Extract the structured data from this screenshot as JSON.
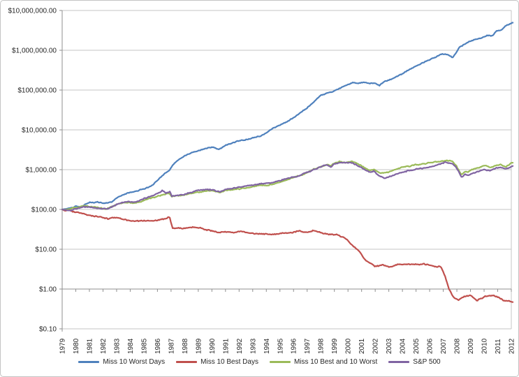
{
  "colors": {
    "background": "#ffffff",
    "chart_border": "#c3c3c3",
    "gridline": "#c6c6c6",
    "axis_line": "#8f8f8f",
    "label_text": "#262626"
  },
  "chart_data": {
    "type": "line",
    "title": "",
    "grid": true,
    "legend_position": "bottom",
    "x_axis": {
      "labels": [
        "1979",
        "1980",
        "1981",
        "1982",
        "1983",
        "1984",
        "1985",
        "1986",
        "1987",
        "1988",
        "1989",
        "1990",
        "1991",
        "1992",
        "1993",
        "1994",
        "1995",
        "1996",
        "1997",
        "1998",
        "1999",
        "2000",
        "2001",
        "2002",
        "2003",
        "2004",
        "2005",
        "2006",
        "2007",
        "2008",
        "2009",
        "2010",
        "2011",
        "2012"
      ],
      "range": [
        1979,
        2012
      ]
    },
    "y_axis": {
      "scale": "log",
      "min": 0.1,
      "max": 10000000,
      "tick_labels": [
        "$10,000,000.00",
        "$1,000,000.00",
        "$100,000.00",
        "$10,000.00",
        "$1,000.00",
        "$100.00",
        "$10.00",
        "$1.00",
        "$0.10"
      ]
    },
    "series": [
      {
        "name": "Miss 10 Worst Days",
        "color": "#4F81BD",
        "points": [
          [
            1979,
            100
          ],
          [
            1979.4,
            105
          ],
          [
            1979.7,
            110
          ],
          [
            1980,
            123
          ],
          [
            1980.4,
            118
          ],
          [
            1981,
            150
          ],
          [
            1981.6,
            156
          ],
          [
            1982.2,
            150
          ],
          [
            1982.7,
            165
          ],
          [
            1983,
            205
          ],
          [
            1983.5,
            245
          ],
          [
            1984,
            280
          ],
          [
            1984.6,
            305
          ],
          [
            1985,
            335
          ],
          [
            1985.5,
            385
          ],
          [
            1986,
            560
          ],
          [
            1986.5,
            780
          ],
          [
            1986.9,
            980
          ],
          [
            1987.2,
            1400
          ],
          [
            1987.6,
            1850
          ],
          [
            1988,
            2250
          ],
          [
            1988.6,
            2700
          ],
          [
            1989.3,
            3250
          ],
          [
            1990,
            3800
          ],
          [
            1990.5,
            3350
          ],
          [
            1991,
            4300
          ],
          [
            1991.5,
            4800
          ],
          [
            1992,
            5300
          ],
          [
            1992.6,
            5800
          ],
          [
            1993,
            6300
          ],
          [
            1993.5,
            6900
          ],
          [
            1994,
            8500
          ],
          [
            1994.3,
            10200
          ],
          [
            1995,
            13500
          ],
          [
            1995.7,
            18000
          ],
          [
            1996.3,
            24000
          ],
          [
            1997,
            36000
          ],
          [
            1997.6,
            56000
          ],
          [
            1998,
            72000
          ],
          [
            1998.8,
            86000
          ],
          [
            1999.2,
            100000
          ],
          [
            1999.6,
            118000
          ],
          [
            2000,
            138000
          ],
          [
            2000.4,
            155000
          ],
          [
            2000.8,
            148000
          ],
          [
            2001.2,
            158000
          ],
          [
            2001.6,
            150000
          ],
          [
            2002,
            158000
          ],
          [
            2002.3,
            137000
          ],
          [
            2002.7,
            175000
          ],
          [
            2003.3,
            200000
          ],
          [
            2004,
            260000
          ],
          [
            2004.8,
            390000
          ],
          [
            2005.5,
            500000
          ],
          [
            2006.3,
            650000
          ],
          [
            2006.9,
            840000
          ],
          [
            2007.3,
            790000
          ],
          [
            2007.7,
            660000
          ],
          [
            2007.95,
            900000
          ],
          [
            2008.2,
            1250000
          ],
          [
            2008.5,
            1450000
          ],
          [
            2008.9,
            1700000
          ],
          [
            2009.4,
            1900000
          ],
          [
            2009.8,
            2100000
          ],
          [
            2010.2,
            2400000
          ],
          [
            2010.6,
            2350000
          ],
          [
            2010.9,
            3100000
          ],
          [
            2011.3,
            3400000
          ],
          [
            2011.6,
            4400000
          ],
          [
            2012,
            5000000
          ],
          [
            2012.15,
            5300000
          ]
        ]
      },
      {
        "name": "Miss 10 Best Days",
        "color": "#C0504D",
        "points": [
          [
            1979,
            100
          ],
          [
            1979.2,
            92
          ],
          [
            1979.5,
            95
          ],
          [
            1980,
            85
          ],
          [
            1980.4,
            80
          ],
          [
            1980.8,
            70
          ],
          [
            1981,
            66
          ],
          [
            1981.5,
            62
          ],
          [
            1982,
            58
          ],
          [
            1982.4,
            55
          ],
          [
            1982.8,
            58
          ],
          [
            1983.3,
            55
          ],
          [
            1983.8,
            50
          ],
          [
            1984.3,
            47
          ],
          [
            1985,
            50
          ],
          [
            1985.5,
            48
          ],
          [
            1986,
            50
          ],
          [
            1986.5,
            55
          ],
          [
            1986.9,
            60
          ],
          [
            1987.1,
            31
          ],
          [
            1987.5,
            32
          ],
          [
            1988,
            31
          ],
          [
            1988.6,
            33
          ],
          [
            1989.2,
            32
          ],
          [
            1989.8,
            28
          ],
          [
            1990.4,
            25
          ],
          [
            1991,
            26
          ],
          [
            1991.6,
            25
          ],
          [
            1992.2,
            26
          ],
          [
            1993,
            24
          ],
          [
            1993.8,
            22.5
          ],
          [
            1994.4,
            21.5
          ],
          [
            1995,
            23
          ],
          [
            1995.8,
            25
          ],
          [
            1996.4,
            27
          ],
          [
            1997,
            25.5
          ],
          [
            1997.4,
            28.5
          ],
          [
            1998,
            26
          ],
          [
            1998.6,
            23.5
          ],
          [
            1999.2,
            22
          ],
          [
            1999.8,
            18
          ],
          [
            2000.3,
            12
          ],
          [
            2000.8,
            8.5
          ],
          [
            2001.2,
            5.2
          ],
          [
            2001.6,
            4.2
          ],
          [
            2002,
            3.5
          ],
          [
            2002.5,
            3.9
          ],
          [
            2003,
            3.7
          ],
          [
            2003.6,
            4.1
          ],
          [
            2004.2,
            4.3
          ],
          [
            2005,
            4.0
          ],
          [
            2005.6,
            4.2
          ],
          [
            2006.2,
            3.9
          ],
          [
            2006.8,
            3.7
          ],
          [
            2007.1,
            2.3
          ],
          [
            2007.4,
            1.1
          ],
          [
            2007.8,
            0.62
          ],
          [
            2008.1,
            0.52
          ],
          [
            2008.5,
            0.63
          ],
          [
            2009,
            0.7
          ],
          [
            2009.5,
            0.52
          ],
          [
            2010,
            0.63
          ],
          [
            2010.6,
            0.66
          ],
          [
            2011,
            0.58
          ],
          [
            2011.5,
            0.48
          ],
          [
            2012,
            0.45
          ],
          [
            2012.15,
            0.43
          ]
        ]
      },
      {
        "name": "Miss 10 Best and 10 Worst",
        "color": "#9BBB59",
        "points": [
          [
            1979,
            100
          ],
          [
            1979.5,
            98
          ],
          [
            1980,
            105
          ],
          [
            1980.6,
            115
          ],
          [
            1981,
            112
          ],
          [
            1981.7,
            103
          ],
          [
            1982.3,
            98
          ],
          [
            1982.8,
            118
          ],
          [
            1983,
            128
          ],
          [
            1983.7,
            142
          ],
          [
            1984.3,
            138
          ],
          [
            1985,
            165
          ],
          [
            1985.7,
            195
          ],
          [
            1986.4,
            225
          ],
          [
            1986.9,
            235
          ],
          [
            1987.05,
            200
          ],
          [
            1987.3,
            205
          ],
          [
            1988,
            225
          ],
          [
            1988.7,
            255
          ],
          [
            1989.4,
            285
          ],
          [
            1990,
            290
          ],
          [
            1990.6,
            255
          ],
          [
            1991,
            295
          ],
          [
            1991.4,
            315
          ],
          [
            1992,
            345
          ],
          [
            1993,
            390
          ],
          [
            1993.6,
            425
          ],
          [
            1994.2,
            435
          ],
          [
            1995,
            515
          ],
          [
            1995.8,
            640
          ],
          [
            1996.5,
            740
          ],
          [
            1997,
            880
          ],
          [
            1997.5,
            1050
          ],
          [
            1998,
            1200
          ],
          [
            1998.5,
            1350
          ],
          [
            1998.7,
            1250
          ],
          [
            1999,
            1450
          ],
          [
            1999.4,
            1600
          ],
          [
            1999.8,
            1520
          ],
          [
            2000.2,
            1650
          ],
          [
            2000.6,
            1450
          ],
          [
            2001,
            1250
          ],
          [
            2001.4,
            1050
          ],
          [
            2001.7,
            980
          ],
          [
            2001.9,
            1050
          ],
          [
            2002.3,
            820
          ],
          [
            2002.7,
            780
          ],
          [
            2003,
            820
          ],
          [
            2003.5,
            950
          ],
          [
            2004,
            1080
          ],
          [
            2004.5,
            1150
          ],
          [
            2005,
            1250
          ],
          [
            2005.5,
            1300
          ],
          [
            2006,
            1400
          ],
          [
            2006.5,
            1480
          ],
          [
            2007.2,
            1600
          ],
          [
            2007.6,
            1550
          ],
          [
            2007.9,
            1250
          ],
          [
            2008.2,
            850
          ],
          [
            2008.35,
            700
          ],
          [
            2008.6,
            880
          ],
          [
            2008.8,
            820
          ],
          [
            2009.2,
            980
          ],
          [
            2009.6,
            1100
          ],
          [
            2010,
            1250
          ],
          [
            2010.4,
            1150
          ],
          [
            2010.8,
            1300
          ],
          [
            2011.2,
            1420
          ],
          [
            2011.6,
            1250
          ],
          [
            2012,
            1550
          ],
          [
            2012.15,
            1620
          ]
        ]
      },
      {
        "name": "S&P 500",
        "color": "#8064A2",
        "points": [
          [
            1979,
            100
          ],
          [
            1979.5,
            96
          ],
          [
            1980,
            107
          ],
          [
            1980.6,
            120
          ],
          [
            1981,
            118
          ],
          [
            1981.7,
            108
          ],
          [
            1982.3,
            102
          ],
          [
            1982.8,
            125
          ],
          [
            1983,
            135
          ],
          [
            1983.7,
            150
          ],
          [
            1984.3,
            145
          ],
          [
            1985,
            175
          ],
          [
            1985.7,
            210
          ],
          [
            1986.4,
            285
          ],
          [
            1986.6,
            250
          ],
          [
            1986.9,
            265
          ],
          [
            1987.05,
            210
          ],
          [
            1987.3,
            215
          ],
          [
            1988,
            235
          ],
          [
            1988.7,
            270
          ],
          [
            1989.4,
            300
          ],
          [
            1990,
            305
          ],
          [
            1990.6,
            270
          ],
          [
            1991,
            310
          ],
          [
            1991.4,
            330
          ],
          [
            1992,
            360
          ],
          [
            1993,
            400
          ],
          [
            1993.6,
            430
          ],
          [
            1994.2,
            440
          ],
          [
            1995,
            520
          ],
          [
            1995.8,
            640
          ],
          [
            1996.5,
            730
          ],
          [
            1997,
            850
          ],
          [
            1997.5,
            1000
          ],
          [
            1998,
            1150
          ],
          [
            1998.5,
            1280
          ],
          [
            1998.7,
            1150
          ],
          [
            1999,
            1350
          ],
          [
            1999.4,
            1480
          ],
          [
            1999.8,
            1420
          ],
          [
            2000.2,
            1500
          ],
          [
            2000.6,
            1350
          ],
          [
            2001,
            1150
          ],
          [
            2001.4,
            950
          ],
          [
            2001.7,
            880
          ],
          [
            2001.9,
            950
          ],
          [
            2002.3,
            700
          ],
          [
            2002.7,
            660
          ],
          [
            2003,
            700
          ],
          [
            2003.5,
            820
          ],
          [
            2004,
            930
          ],
          [
            2004.5,
            1000
          ],
          [
            2005,
            1080
          ],
          [
            2005.5,
            1120
          ],
          [
            2006,
            1220
          ],
          [
            2006.5,
            1300
          ],
          [
            2007.2,
            1450
          ],
          [
            2007.6,
            1400
          ],
          [
            2007.9,
            1150
          ],
          [
            2008.2,
            800
          ],
          [
            2008.35,
            620
          ],
          [
            2008.6,
            780
          ],
          [
            2008.8,
            720
          ],
          [
            2009.2,
            850
          ],
          [
            2009.6,
            950
          ],
          [
            2010,
            1080
          ],
          [
            2010.4,
            1000
          ],
          [
            2010.8,
            1150
          ],
          [
            2011.2,
            1250
          ],
          [
            2011.6,
            1080
          ],
          [
            2012,
            1280
          ],
          [
            2012.15,
            1330
          ]
        ]
      }
    ]
  }
}
